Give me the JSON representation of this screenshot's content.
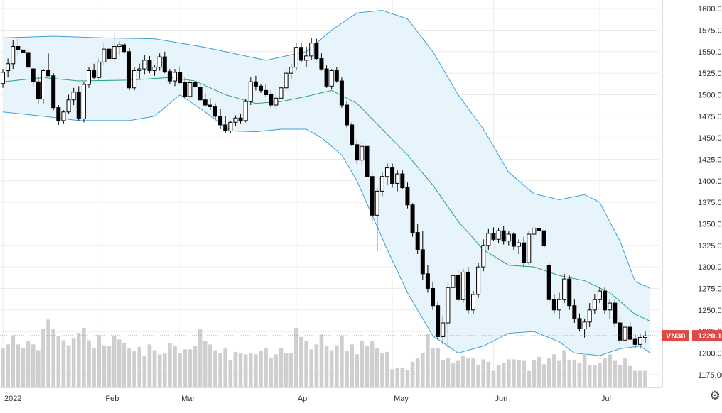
{
  "chart_data": {
    "type": "candlestick",
    "symbol": "VN30",
    "last_price_label": "1220.1",
    "last_price": 1220.1,
    "ylim": [
      1160,
      1610
    ],
    "y_ticks": [
      1175,
      1200,
      1225,
      1250,
      1275,
      1300,
      1325,
      1350,
      1375,
      1400,
      1425,
      1450,
      1475,
      1500,
      1525,
      1550,
      1575,
      1600
    ],
    "x_labels": [
      {
        "label": "2022",
        "index": 0
      },
      {
        "label": "Feb",
        "index": 20
      },
      {
        "label": "Mar",
        "index": 35
      },
      {
        "label": "Apr",
        "index": 58
      },
      {
        "label": "May",
        "index": 77
      },
      {
        "label": "Jun",
        "index": 97
      },
      {
        "label": "Jul",
        "index": 118
      }
    ],
    "colors": {
      "up_candle": "#ffffff",
      "down_candle": "#000000",
      "band_line": "#3a9fd8",
      "band_fill": "#e8f4fb",
      "mid_line": "#24a37a",
      "volume": "#cfcfcf",
      "price_line": "#e04848",
      "badge": "#e04848",
      "grid": "#ebebeb"
    },
    "bollinger": {
      "upper": [
        [
          0,
          1566
        ],
        [
          10,
          1568
        ],
        [
          20,
          1566
        ],
        [
          30,
          1565
        ],
        [
          40,
          1555
        ],
        [
          48,
          1545
        ],
        [
          52,
          1540
        ],
        [
          56,
          1545
        ],
        [
          60,
          1550
        ],
        [
          65,
          1575
        ],
        [
          70,
          1595
        ],
        [
          75,
          1598
        ],
        [
          80,
          1588
        ],
        [
          85,
          1550
        ],
        [
          90,
          1500
        ],
        [
          95,
          1460
        ],
        [
          100,
          1410
        ],
        [
          105,
          1385
        ],
        [
          110,
          1378
        ],
        [
          115,
          1384
        ],
        [
          118,
          1375
        ],
        [
          122,
          1330
        ],
        [
          125,
          1283
        ],
        [
          128,
          1275
        ]
      ],
      "middle": [
        [
          0,
          1515
        ],
        [
          8,
          1520
        ],
        [
          15,
          1516
        ],
        [
          25,
          1517
        ],
        [
          33,
          1520
        ],
        [
          38,
          1516
        ],
        [
          44,
          1500
        ],
        [
          50,
          1490
        ],
        [
          55,
          1492
        ],
        [
          60,
          1498
        ],
        [
          65,
          1505
        ],
        [
          70,
          1490
        ],
        [
          75,
          1460
        ],
        [
          80,
          1430
        ],
        [
          85,
          1395
        ],
        [
          90,
          1353
        ],
        [
          95,
          1320
        ],
        [
          100,
          1302
        ],
        [
          105,
          1300
        ],
        [
          110,
          1290
        ],
        [
          115,
          1284
        ],
        [
          120,
          1270
        ],
        [
          125,
          1245
        ],
        [
          128,
          1237
        ]
      ],
      "lower": [
        [
          0,
          1480
        ],
        [
          8,
          1475
        ],
        [
          15,
          1470
        ],
        [
          25,
          1470
        ],
        [
          30,
          1475
        ],
        [
          35,
          1500
        ],
        [
          40,
          1480
        ],
        [
          45,
          1458
        ],
        [
          50,
          1457
        ],
        [
          55,
          1460
        ],
        [
          60,
          1460
        ],
        [
          63,
          1450
        ],
        [
          67,
          1430
        ],
        [
          70,
          1400
        ],
        [
          73,
          1360
        ],
        [
          76,
          1320
        ],
        [
          80,
          1270
        ],
        [
          85,
          1220
        ],
        [
          90,
          1200
        ],
        [
          95,
          1208
        ],
        [
          100,
          1223
        ],
        [
          105,
          1225
        ],
        [
          110,
          1213
        ],
        [
          113,
          1200
        ],
        [
          118,
          1197
        ],
        [
          122,
          1205
        ],
        [
          126,
          1208
        ],
        [
          128,
          1200
        ]
      ]
    },
    "candles": [
      [
        1513,
        1530,
        1508,
        1526
      ],
      [
        1528,
        1542,
        1520,
        1536
      ],
      [
        1536,
        1563,
        1530,
        1556
      ],
      [
        1556,
        1566,
        1545,
        1552
      ],
      [
        1552,
        1560,
        1546,
        1549
      ],
      [
        1549,
        1552,
        1530,
        1532
      ],
      [
        1530,
        1531,
        1510,
        1515
      ],
      [
        1515,
        1520,
        1490,
        1495
      ],
      [
        1495,
        1530,
        1490,
        1528
      ],
      [
        1528,
        1548,
        1522,
        1522
      ],
      [
        1522,
        1525,
        1482,
        1485
      ],
      [
        1485,
        1488,
        1465,
        1470
      ],
      [
        1470,
        1482,
        1466,
        1480
      ],
      [
        1480,
        1500,
        1478,
        1494
      ],
      [
        1494,
        1508,
        1488,
        1503
      ],
      [
        1503,
        1510,
        1470,
        1472
      ],
      [
        1472,
        1515,
        1468,
        1512
      ],
      [
        1512,
        1532,
        1508,
        1528
      ],
      [
        1528,
        1536,
        1518,
        1520
      ],
      [
        1520,
        1542,
        1516,
        1538
      ],
      [
        1538,
        1560,
        1534,
        1553
      ],
      [
        1553,
        1558,
        1540,
        1542
      ],
      [
        1542,
        1572,
        1538,
        1556
      ],
      [
        1556,
        1562,
        1546,
        1558
      ],
      [
        1558,
        1560,
        1548,
        1550
      ],
      [
        1550,
        1554,
        1505,
        1508
      ],
      [
        1508,
        1532,
        1505,
        1528
      ],
      [
        1528,
        1536,
        1518,
        1530
      ],
      [
        1530,
        1546,
        1524,
        1540
      ],
      [
        1540,
        1545,
        1525,
        1528
      ],
      [
        1528,
        1534,
        1522,
        1532
      ],
      [
        1532,
        1548,
        1528,
        1544
      ],
      [
        1544,
        1550,
        1525,
        1527
      ],
      [
        1527,
        1530,
        1512,
        1516
      ],
      [
        1516,
        1530,
        1510,
        1526
      ],
      [
        1526,
        1533,
        1512,
        1514
      ],
      [
        1514,
        1520,
        1495,
        1498
      ],
      [
        1498,
        1518,
        1495,
        1514
      ],
      [
        1514,
        1522,
        1505,
        1509
      ],
      [
        1509,
        1512,
        1492,
        1494
      ],
      [
        1494,
        1502,
        1486,
        1488
      ],
      [
        1488,
        1496,
        1482,
        1486
      ],
      [
        1486,
        1490,
        1472,
        1475
      ],
      [
        1475,
        1484,
        1460,
        1465
      ],
      [
        1465,
        1475,
        1455,
        1458
      ],
      [
        1458,
        1470,
        1455,
        1468
      ],
      [
        1468,
        1476,
        1464,
        1473
      ],
      [
        1473,
        1478,
        1466,
        1470
      ],
      [
        1470,
        1495,
        1468,
        1492
      ],
      [
        1492,
        1520,
        1488,
        1515
      ],
      [
        1515,
        1522,
        1505,
        1510
      ],
      [
        1510,
        1512,
        1502,
        1505
      ],
      [
        1505,
        1512,
        1498,
        1500
      ],
      [
        1500,
        1505,
        1485,
        1488
      ],
      [
        1488,
        1500,
        1484,
        1496
      ],
      [
        1496,
        1512,
        1493,
        1508
      ],
      [
        1508,
        1528,
        1505,
        1525
      ],
      [
        1525,
        1536,
        1518,
        1532
      ],
      [
        1532,
        1560,
        1528,
        1555
      ],
      [
        1555,
        1560,
        1538,
        1540
      ],
      [
        1540,
        1556,
        1532,
        1545
      ],
      [
        1545,
        1566,
        1540,
        1560
      ],
      [
        1560,
        1565,
        1540,
        1542
      ],
      [
        1542,
        1548,
        1528,
        1530
      ],
      [
        1530,
        1534,
        1508,
        1510
      ],
      [
        1510,
        1530,
        1506,
        1528
      ],
      [
        1528,
        1532,
        1514,
        1516
      ],
      [
        1516,
        1520,
        1485,
        1488
      ],
      [
        1488,
        1492,
        1462,
        1465
      ],
      [
        1465,
        1468,
        1440,
        1442
      ],
      [
        1442,
        1448,
        1420,
        1424
      ],
      [
        1424,
        1445,
        1418,
        1440
      ],
      [
        1440,
        1452,
        1400,
        1405
      ],
      [
        1405,
        1410,
        1350,
        1360
      ],
      [
        1360,
        1392,
        1318,
        1388
      ],
      [
        1388,
        1410,
        1382,
        1405
      ],
      [
        1405,
        1420,
        1395,
        1415
      ],
      [
        1415,
        1420,
        1392,
        1397
      ],
      [
        1397,
        1412,
        1388,
        1408
      ],
      [
        1408,
        1412,
        1390,
        1392
      ],
      [
        1392,
        1398,
        1368,
        1372
      ],
      [
        1372,
        1374,
        1335,
        1340
      ],
      [
        1340,
        1350,
        1315,
        1320
      ],
      [
        1320,
        1342,
        1285,
        1292
      ],
      [
        1292,
        1302,
        1270,
        1275
      ],
      [
        1275,
        1282,
        1250,
        1255
      ],
      [
        1255,
        1260,
        1215,
        1219
      ],
      [
        1219,
        1242,
        1210,
        1235
      ],
      [
        1235,
        1282,
        1205,
        1276
      ],
      [
        1276,
        1295,
        1268,
        1290
      ],
      [
        1290,
        1296,
        1260,
        1262
      ],
      [
        1262,
        1298,
        1258,
        1294
      ],
      [
        1294,
        1300,
        1245,
        1250
      ],
      [
        1250,
        1272,
        1245,
        1268
      ],
      [
        1268,
        1305,
        1264,
        1300
      ],
      [
        1300,
        1332,
        1295,
        1325
      ],
      [
        1325,
        1344,
        1320,
        1339
      ],
      [
        1339,
        1346,
        1330,
        1332
      ],
      [
        1332,
        1345,
        1328,
        1342
      ],
      [
        1342,
        1348,
        1326,
        1330
      ],
      [
        1330,
        1342,
        1325,
        1338
      ],
      [
        1338,
        1340,
        1320,
        1324
      ],
      [
        1324,
        1332,
        1315,
        1328
      ],
      [
        1328,
        1335,
        1300,
        1305
      ],
      [
        1305,
        1342,
        1302,
        1338
      ],
      [
        1338,
        1348,
        1332,
        1345
      ],
      [
        1345,
        1349,
        1338,
        1342
      ],
      [
        1342,
        1343,
        1322,
        1325
      ],
      [
        1302,
        1304,
        1260,
        1262
      ],
      [
        1262,
        1268,
        1246,
        1250
      ],
      [
        1250,
        1270,
        1240,
        1262
      ],
      [
        1262,
        1292,
        1258,
        1286
      ],
      [
        1286,
        1290,
        1250,
        1255
      ],
      [
        1255,
        1262,
        1235,
        1240
      ],
      [
        1240,
        1246,
        1225,
        1228
      ],
      [
        1228,
        1240,
        1218,
        1236
      ],
      [
        1236,
        1258,
        1230,
        1250
      ],
      [
        1250,
        1268,
        1245,
        1262
      ],
      [
        1262,
        1276,
        1258,
        1272
      ],
      [
        1272,
        1276,
        1245,
        1250
      ],
      [
        1250,
        1262,
        1240,
        1258
      ],
      [
        1258,
        1262,
        1230,
        1235
      ],
      [
        1235,
        1242,
        1210,
        1215
      ],
      [
        1215,
        1232,
        1210,
        1230
      ],
      [
        1230,
        1236,
        1214,
        1216
      ],
      [
        1216,
        1222,
        1205,
        1210
      ],
      [
        1210,
        1222,
        1205,
        1218
      ],
      [
        1218,
        1225,
        1212,
        1220
      ]
    ],
    "volumes": [
      47,
      52,
      63,
      52,
      48,
      56,
      52,
      45,
      71,
      82,
      71,
      62,
      57,
      51,
      59,
      66,
      72,
      57,
      47,
      63,
      51,
      50,
      62,
      58,
      54,
      47,
      44,
      49,
      38,
      52,
      45,
      40,
      41,
      54,
      50,
      42,
      46,
      46,
      50,
      71,
      56,
      52,
      45,
      42,
      47,
      33,
      43,
      41,
      40,
      42,
      40,
      44,
      47,
      36,
      40,
      48,
      42,
      42,
      72,
      61,
      56,
      46,
      52,
      64,
      50,
      45,
      51,
      62,
      44,
      52,
      40,
      56,
      50,
      56,
      48,
      41,
      43,
      22,
      24,
      24,
      21,
      31,
      35,
      42,
      65,
      48,
      48,
      33,
      35,
      30,
      32,
      38,
      35,
      35,
      27,
      34,
      31,
      20,
      27,
      30,
      34,
      34,
      33,
      32,
      20,
      33,
      37,
      28,
      35,
      40,
      32,
      45,
      33,
      33,
      30,
      42,
      27,
      27,
      29,
      35,
      40,
      32,
      27,
      35,
      26,
      20,
      20,
      20
    ],
    "volume_max": 120
  }
}
